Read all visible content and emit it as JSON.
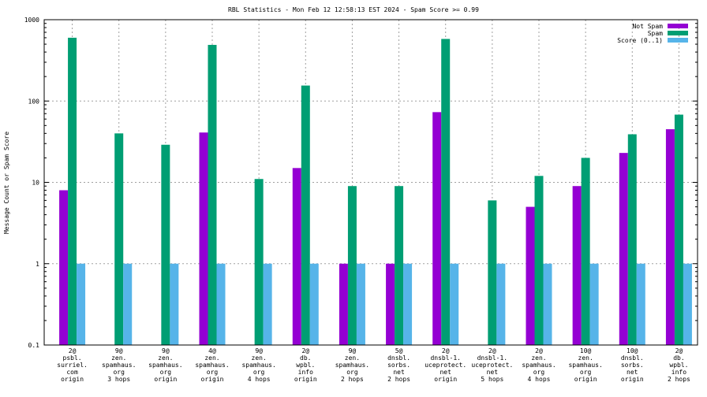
{
  "chart_data": {
    "type": "bar",
    "title": "RBL Statistics - Mon Feb 12 12:58:13 EST 2024 - Spam Score >= 0.99",
    "xlabel": "",
    "ylabel": "Message Count or Spam Score",
    "yscale": "log",
    "ylim": [
      0.1,
      1000
    ],
    "yticks": [
      "0.1",
      "1",
      "10",
      "100",
      "1000"
    ],
    "grid": true,
    "legend_position": "top-right",
    "categories": [
      [
        "2@",
        "psbl.",
        "surriel.",
        "com",
        "origin"
      ],
      [
        "9@",
        "zen.",
        "spamhaus.",
        "org",
        "3 hops"
      ],
      [
        "9@",
        "zen.",
        "spamhaus.",
        "org",
        "origin"
      ],
      [
        "4@",
        "zen.",
        "spamhaus.",
        "org",
        "origin"
      ],
      [
        "9@",
        "zen.",
        "spamhaus.",
        "org",
        "4 hops"
      ],
      [
        "2@",
        "db.",
        "wpbl.",
        "info",
        "origin"
      ],
      [
        "9@",
        "zen.",
        "spamhaus.",
        "org",
        "2 hops"
      ],
      [
        "5@",
        "dnsbl.",
        "sorbs.",
        "net",
        "2 hops"
      ],
      [
        "2@",
        "dnsbl-1.",
        "uceprotect.",
        "net",
        "origin"
      ],
      [
        "2@",
        "dnsbl-1.",
        "uceprotect.",
        "net",
        "5 hops"
      ],
      [
        "2@",
        "zen.",
        "spamhaus.",
        "org",
        "4 hops"
      ],
      [
        "10@",
        "zen.",
        "spamhaus.",
        "org",
        "origin"
      ],
      [
        "10@",
        "dnsbl.",
        "sorbs.",
        "net",
        "origin"
      ],
      [
        "2@",
        "db.",
        "wpbl.",
        "info",
        "2 hops"
      ]
    ],
    "series": [
      {
        "name": "Not Spam",
        "color": "#9400d3",
        "values": [
          8,
          0,
          0,
          41,
          0,
          15,
          1,
          1,
          73,
          0,
          5,
          9,
          23,
          45
        ]
      },
      {
        "name": "Spam",
        "color": "#009e73",
        "values": [
          600,
          40,
          29,
          490,
          11,
          155,
          9,
          9,
          580,
          6,
          12,
          20,
          39,
          68
        ]
      },
      {
        "name": "Score (0..1)",
        "color": "#56b4e9",
        "values": [
          1,
          1,
          1,
          1,
          1,
          1,
          1,
          1,
          1,
          1,
          1,
          1,
          1,
          1
        ]
      }
    ]
  }
}
